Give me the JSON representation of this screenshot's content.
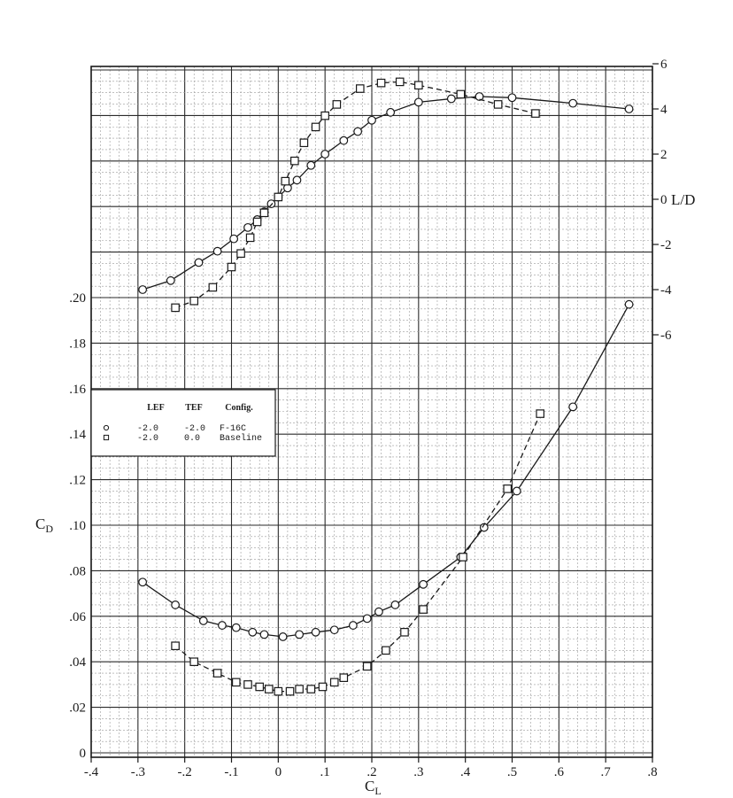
{
  "chart_data": {
    "type": "line",
    "title": "",
    "xlabel": "CL",
    "ylabel_left": "CD",
    "ylabel_right": "L/D",
    "xlim": [
      -0.4,
      0.8
    ],
    "ylim_left": [
      0,
      0.2
    ],
    "ylim_right": [
      -6,
      6
    ],
    "grid": true,
    "legend_placement": "left",
    "x_ticks": [
      {
        "value": -0.4,
        "label": "-.4"
      },
      {
        "value": -0.3,
        "label": "-.3"
      },
      {
        "value": -0.2,
        "label": "-.2"
      },
      {
        "value": -0.1,
        "label": "-.1"
      },
      {
        "value": 0.0,
        "label": "0"
      },
      {
        "value": 0.1,
        "label": ".1"
      },
      {
        "value": 0.2,
        "label": ".2"
      },
      {
        "value": 0.3,
        "label": ".3"
      },
      {
        "value": 0.4,
        "label": ".4"
      },
      {
        "value": 0.5,
        "label": ".5"
      },
      {
        "value": 0.6,
        "label": ".6"
      },
      {
        "value": 0.7,
        "label": ".7"
      },
      {
        "value": 0.8,
        "label": ".8"
      }
    ],
    "y_left_ticks": [
      {
        "value": 0.0,
        "label": "0"
      },
      {
        "value": 0.02,
        "label": ".02"
      },
      {
        "value": 0.04,
        "label": ".04"
      },
      {
        "value": 0.06,
        "label": ".06"
      },
      {
        "value": 0.08,
        "label": ".08"
      },
      {
        "value": 0.1,
        "label": ".10"
      },
      {
        "value": 0.12,
        "label": ".12"
      },
      {
        "value": 0.14,
        "label": ".14"
      },
      {
        "value": 0.16,
        "label": ".16"
      },
      {
        "value": 0.18,
        "label": ".18"
      },
      {
        "value": 0.2,
        "label": ".20"
      }
    ],
    "y_right_ticks": [
      {
        "value": 6,
        "label": "6"
      },
      {
        "value": 4,
        "label": "4"
      },
      {
        "value": 2,
        "label": "2"
      },
      {
        "value": 0,
        "label": "0"
      },
      {
        "value": -2,
        "label": "-2"
      },
      {
        "value": -4,
        "label": "-4"
      },
      {
        "value": -6,
        "label": "-6"
      }
    ],
    "legend": {
      "headers": [
        "LEF",
        "TEF",
        "Config."
      ],
      "rows": [
        {
          "symbol": "circle",
          "lef": "-2.0",
          "tef": "-2.0",
          "config": "F-16C"
        },
        {
          "symbol": "square",
          "lef": "-2.0",
          "tef": "0.0",
          "config": "Baseline"
        }
      ]
    },
    "series": [
      {
        "name": "F-16C",
        "quantity": "L/D",
        "axis": "right",
        "marker": "circle",
        "line": "solid",
        "x": [
          -0.29,
          -0.23,
          -0.17,
          -0.13,
          -0.095,
          -0.065,
          -0.045,
          -0.03,
          -0.015,
          0.0,
          0.02,
          0.04,
          0.07,
          0.1,
          0.14,
          0.17,
          0.2,
          0.24,
          0.3,
          0.37,
          0.43,
          0.5,
          0.63,
          0.75
        ],
        "values": [
          -4.0,
          -3.6,
          -2.8,
          -2.3,
          -1.75,
          -1.25,
          -0.9,
          -0.55,
          -0.2,
          0.1,
          0.5,
          0.85,
          1.5,
          2.0,
          2.6,
          3.0,
          3.5,
          3.85,
          4.3,
          4.45,
          4.55,
          4.5,
          4.25,
          4.0
        ]
      },
      {
        "name": "Baseline",
        "quantity": "L/D",
        "axis": "right",
        "marker": "square",
        "line": "dashed",
        "x": [
          -0.22,
          -0.18,
          -0.14,
          -0.1,
          -0.08,
          -0.06,
          -0.045,
          -0.03,
          0.0,
          0.015,
          0.035,
          0.055,
          0.08,
          0.1,
          0.125,
          0.175,
          0.22,
          0.26,
          0.3,
          0.39,
          0.47,
          0.55
        ],
        "values": [
          -4.8,
          -4.5,
          -3.9,
          -3.0,
          -2.4,
          -1.7,
          -1.0,
          -0.6,
          0.1,
          0.8,
          1.7,
          2.5,
          3.2,
          3.7,
          4.2,
          4.9,
          5.15,
          5.2,
          5.05,
          4.65,
          4.2,
          3.8
        ]
      },
      {
        "name": "F-16C",
        "quantity": "CD",
        "axis": "left",
        "marker": "circle",
        "line": "solid",
        "x": [
          -0.29,
          -0.22,
          -0.16,
          -0.12,
          -0.09,
          -0.055,
          -0.03,
          0.01,
          0.045,
          0.08,
          0.12,
          0.16,
          0.19,
          0.215,
          0.25,
          0.31,
          0.39,
          0.44,
          0.51,
          0.63,
          0.75
        ],
        "values": [
          0.075,
          0.065,
          0.058,
          0.056,
          0.055,
          0.053,
          0.052,
          0.051,
          0.052,
          0.053,
          0.054,
          0.056,
          0.059,
          0.062,
          0.065,
          0.074,
          0.086,
          0.099,
          0.115,
          0.152,
          0.197
        ]
      },
      {
        "name": "Baseline",
        "quantity": "CD",
        "axis": "left",
        "marker": "square",
        "line": "dashed",
        "x": [
          -0.22,
          -0.18,
          -0.13,
          -0.09,
          -0.065,
          -0.04,
          -0.02,
          0.0,
          0.025,
          0.045,
          0.07,
          0.095,
          0.12,
          0.14,
          0.19,
          0.23,
          0.27,
          0.31,
          0.395,
          0.49,
          0.56
        ],
        "values": [
          0.047,
          0.04,
          0.035,
          0.031,
          0.03,
          0.029,
          0.028,
          0.027,
          0.027,
          0.028,
          0.028,
          0.029,
          0.031,
          0.033,
          0.038,
          0.045,
          0.053,
          0.063,
          0.086,
          0.116,
          0.149
        ]
      }
    ]
  }
}
